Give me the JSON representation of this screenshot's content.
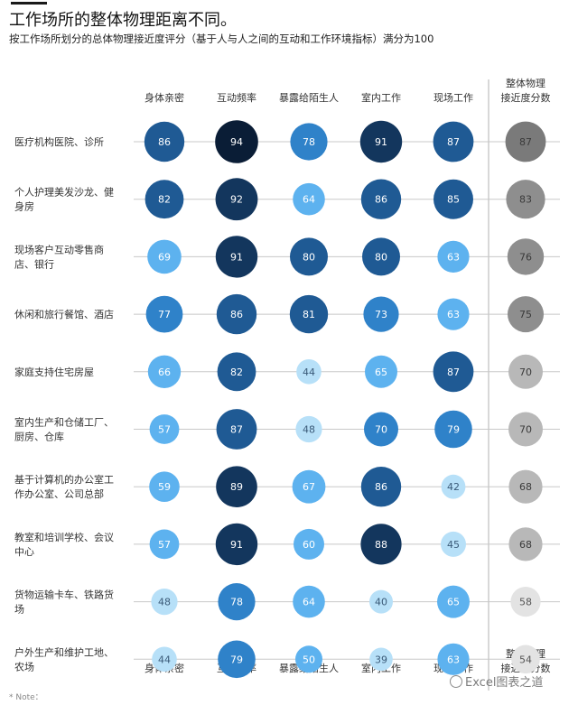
{
  "title": "工作场所的整体物理距离不同。",
  "subtitle": "按工作场所划分的总体物理接近度评分（基于人与人之间的互动和工作环境指标）满分为100",
  "note": "* Note：",
  "watermark": "Excel图表之道",
  "chart_data": {
    "type": "bubble-matrix",
    "columns": [
      [
        "身体亲密"
      ],
      [
        "互动频率"
      ],
      [
        "暴露给陌生人"
      ],
      [
        "室内工作"
      ],
      [
        "现场工作"
      ],
      [
        "整体物理",
        "接近度分数"
      ]
    ],
    "rows": [
      {
        "label": [
          "医疗机构医院、诊所"
        ],
        "values": [
          86,
          94,
          78,
          91,
          87,
          87
        ]
      },
      {
        "label": [
          "个人护理美发沙龙、健",
          "身房"
        ],
        "values": [
          82,
          92,
          64,
          86,
          85,
          83
        ]
      },
      {
        "label": [
          "现场客户互动零售商",
          "店、银行"
        ],
        "values": [
          69,
          91,
          80,
          80,
          63,
          76
        ]
      },
      {
        "label": [
          "休闲和旅行餐馆、酒店"
        ],
        "values": [
          77,
          86,
          81,
          73,
          63,
          75
        ]
      },
      {
        "label": [
          "家庭支持住宅房屋"
        ],
        "values": [
          66,
          82,
          44,
          65,
          87,
          70
        ]
      },
      {
        "label": [
          "室内生产和仓储工厂、",
          "厨房、仓库"
        ],
        "values": [
          57,
          87,
          48,
          70,
          79,
          70
        ]
      },
      {
        "label": [
          "基于计算机的办公室工",
          "作办公室、公司总部"
        ],
        "values": [
          59,
          89,
          67,
          86,
          42,
          68
        ]
      },
      {
        "label": [
          "教室和培训学校、会议",
          "中心"
        ],
        "values": [
          57,
          91,
          60,
          88,
          45,
          68
        ]
      },
      {
        "label": [
          "货物运输卡车、铁路货",
          "场"
        ],
        "values": [
          48,
          78,
          64,
          40,
          65,
          58
        ]
      },
      {
        "label": [
          "户外生产和维护工地、",
          "农场"
        ],
        "values": [
          44,
          79,
          50,
          39,
          63,
          54
        ]
      }
    ],
    "value_range": [
      0,
      100
    ],
    "colors": {
      "blue_scale": [
        "#b7e0f8",
        "#5db2ef",
        "#2f82c9",
        "#1f5a94",
        "#13365d",
        "#0a1d36"
      ],
      "gray_scale": [
        "#e3e3e3",
        "#b8b8b8",
        "#8e8e8e",
        "#7a7a7a"
      ],
      "gridline": "#c8c8c8",
      "separator": "#b0b0b0"
    }
  }
}
